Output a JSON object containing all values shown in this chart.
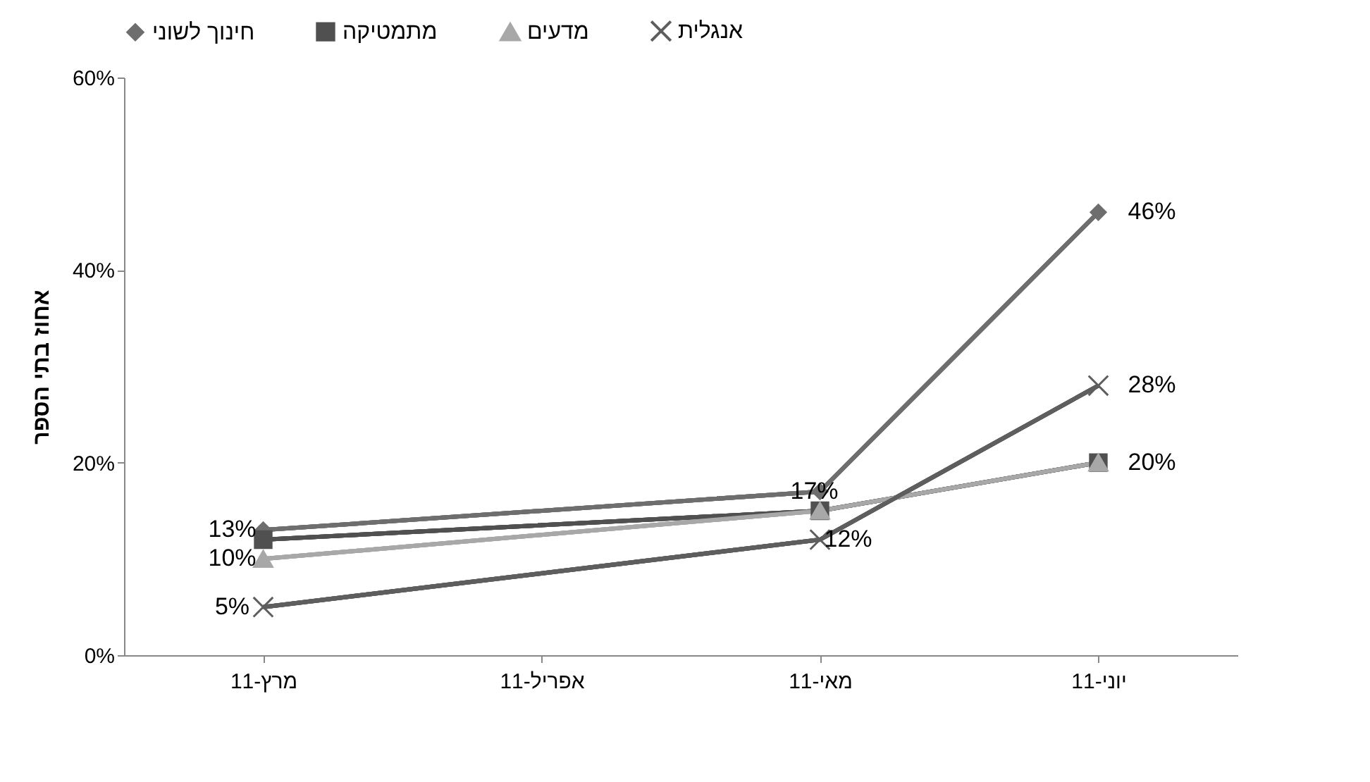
{
  "chart_data": {
    "type": "line",
    "ylabel": "אחוז בתי הספר",
    "categories": [
      "מרץ-11",
      "אפריל-11",
      "מאי-11",
      "יוני-11"
    ],
    "series": [
      {
        "name": "חינוך לשוני",
        "color": "#6e6e6e",
        "marker": "diamond",
        "values": [
          13,
          null,
          17,
          46
        ],
        "value_labels": [
          "13%",
          null,
          "17%",
          "46%"
        ]
      },
      {
        "name": "מתמטיקה",
        "color": "#505050",
        "marker": "square",
        "values": [
          12,
          null,
          15,
          20
        ],
        "value_labels": [
          null,
          null,
          null,
          null
        ]
      },
      {
        "name": "מדעים",
        "color": "#a8a8a8",
        "marker": "triangle",
        "values": [
          10,
          null,
          15,
          20
        ],
        "value_labels": [
          "10%",
          null,
          null,
          "20%"
        ]
      },
      {
        "name": "אנגלית",
        "color": "#5e5e5e",
        "marker": "cross",
        "values": [
          5,
          null,
          12,
          28
        ],
        "value_labels": [
          "5%",
          null,
          "12%",
          "28%"
        ]
      }
    ],
    "ylim": [
      0,
      60
    ],
    "yticks": [
      {
        "value": 0,
        "label": "0%"
      },
      {
        "value": 20,
        "label": "20%"
      },
      {
        "value": 40,
        "label": "40%"
      },
      {
        "value": 60,
        "label": "60%"
      }
    ],
    "grid": false,
    "legend": "top",
    "line_style": "solid"
  }
}
